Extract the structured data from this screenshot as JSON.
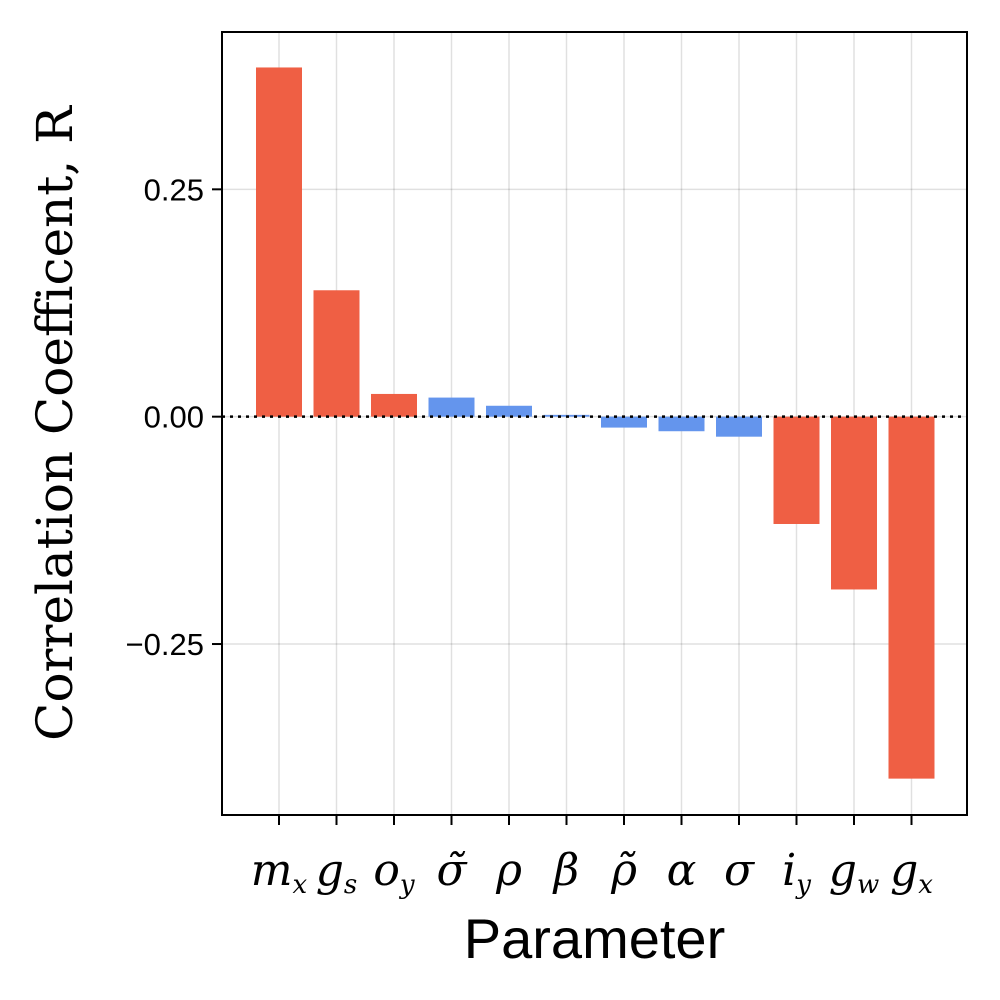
{
  "chart_data": {
    "type": "bar",
    "categories": [
      {
        "base": "m",
        "sub": "x"
      },
      {
        "base": "g",
        "sub": "s"
      },
      {
        "base": "o",
        "sub": "y"
      },
      {
        "base": "σ̃",
        "sub": ""
      },
      {
        "base": "ρ",
        "sub": ""
      },
      {
        "base": "β",
        "sub": ""
      },
      {
        "base": "ρ̃",
        "sub": ""
      },
      {
        "base": "α",
        "sub": ""
      },
      {
        "base": "σ",
        "sub": ""
      },
      {
        "base": "i",
        "sub": "y"
      },
      {
        "base": "g",
        "sub": "w"
      },
      {
        "base": "g",
        "sub": "x"
      }
    ],
    "values": [
      0.384,
      0.139,
      0.025,
      0.021,
      0.012,
      0.002,
      -0.012,
      -0.016,
      -0.022,
      -0.118,
      -0.19,
      -0.398
    ],
    "significant": [
      true,
      true,
      true,
      false,
      false,
      false,
      false,
      false,
      false,
      true,
      true,
      true
    ],
    "colors": {
      "significant": "#ef5f44",
      "not_significant": "#6495ed"
    },
    "xlabel": "Parameter",
    "ylabel": "Correlation Coefficent, R",
    "ylim": [
      -0.438,
      0.423
    ],
    "yticks": [
      -0.25,
      0.0,
      0.25
    ],
    "ytick_labels": [
      "−0.25",
      "0.00",
      "0.25"
    ],
    "zero_line": "dotted",
    "grid": true
  }
}
